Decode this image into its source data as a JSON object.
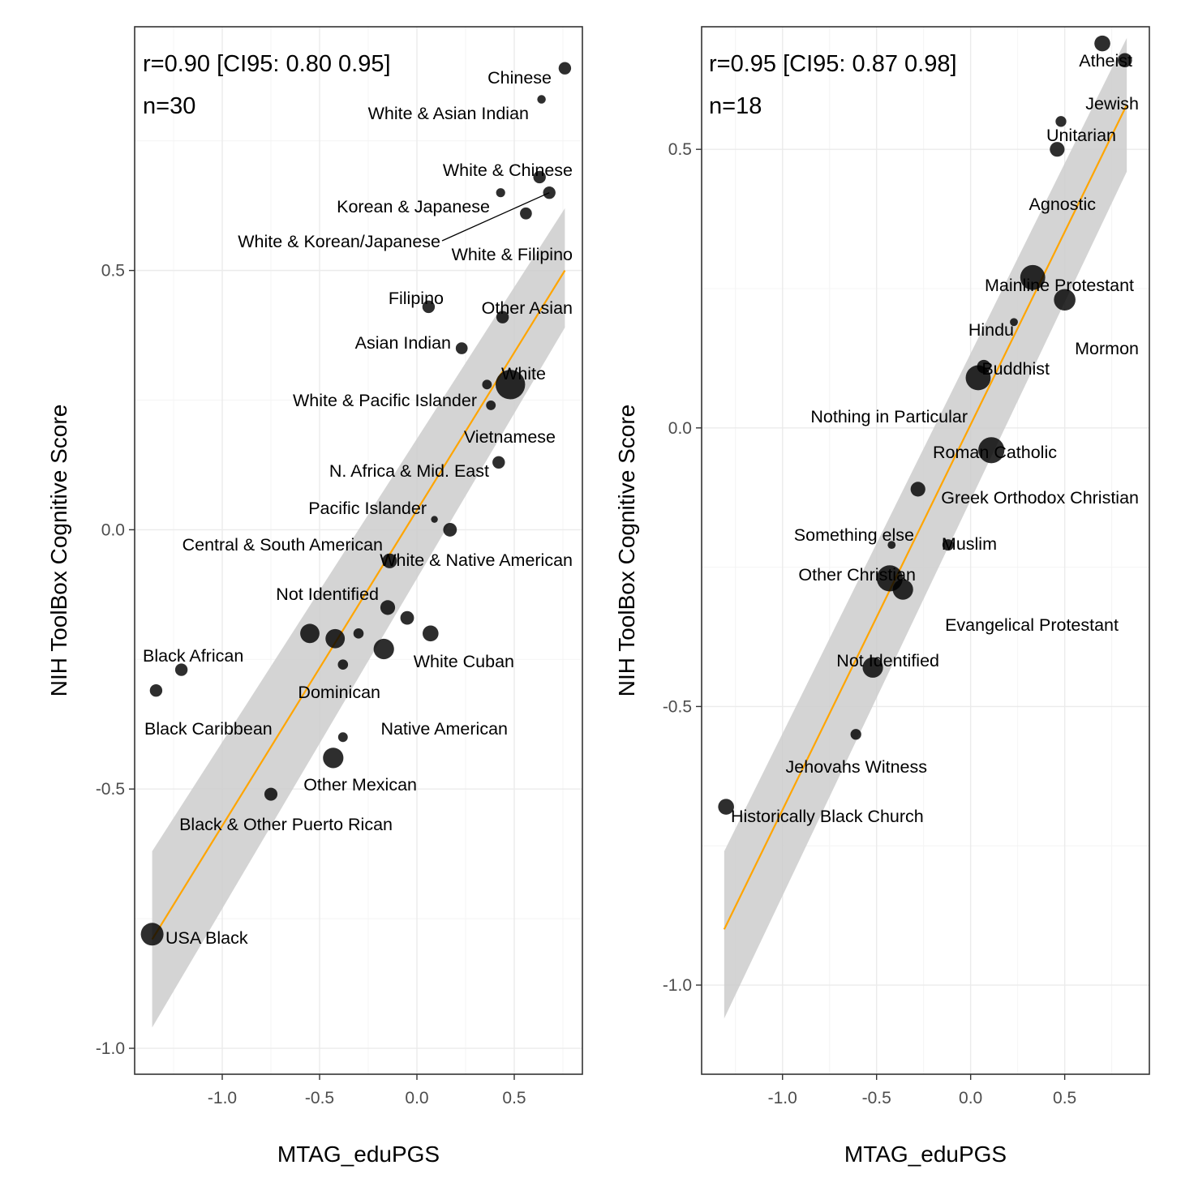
{
  "chart_data": [
    {
      "type": "scatter",
      "xlabel": "MTAG_eduPGS",
      "ylabel": "NIH ToolBox Cognitive Score",
      "stat_lines": [
        "r=0.90 [CI95: 0.80 0.95]",
        "n=30"
      ],
      "xlim": [
        -1.45,
        0.85
      ],
      "ylim": [
        -1.05,
        0.97
      ],
      "x_ticks": [
        -1.0,
        -0.5,
        0.0,
        0.5
      ],
      "x_tick_labels": [
        "-1.0",
        "-0.5",
        "0.0",
        "0.5"
      ],
      "y_ticks": [
        -1.0,
        -0.5,
        0.0,
        0.5
      ],
      "y_tick_labels": [
        "-1.0",
        "-0.5",
        "0.0",
        "0.5"
      ],
      "grid": true,
      "fit": {
        "x_range": [
          -1.36,
          0.76
        ],
        "y_range": [
          -0.79,
          0.5
        ],
        "color": "#ffa500"
      },
      "band": {
        "lower_ends": [
          -0.96,
          0.39
        ],
        "upper_ends": [
          -0.62,
          0.62
        ]
      },
      "points": [
        {
          "label": "Chinese",
          "x": 0.76,
          "y": 0.89,
          "size": 1.1
        },
        {
          "label": "White & Asian Indian",
          "x": 0.64,
          "y": 0.83,
          "size": 0.75
        },
        {
          "label": "White & Chinese",
          "x": 0.63,
          "y": 0.68,
          "size": 1.1
        },
        {
          "label": "Korean & Japanese",
          "x": 0.43,
          "y": 0.65,
          "size": 0.8
        },
        {
          "label": "White & Korean/Japanese",
          "x": 0.68,
          "y": 0.65,
          "size": 1.1
        },
        {
          "label": "White & Filipino",
          "x": 0.56,
          "y": 0.61,
          "size": 1.05
        },
        {
          "label": "Filipino",
          "x": 0.06,
          "y": 0.43,
          "size": 1.1
        },
        {
          "label": "Other Asian",
          "x": 0.44,
          "y": 0.41,
          "size": 1.1
        },
        {
          "label": "Asian Indian",
          "x": 0.23,
          "y": 0.35,
          "size": 1.05
        },
        {
          "label": "White",
          "x": 0.48,
          "y": 0.28,
          "size": 2.6
        },
        {
          "label": "White & Pacific Islander",
          "x": 0.36,
          "y": 0.28,
          "size": 0.85
        },
        {
          "label": "Vietnamese",
          "x": 0.38,
          "y": 0.24,
          "size": 0.85
        },
        {
          "label": "N. Africa & Mid. East",
          "x": 0.42,
          "y": 0.13,
          "size": 1.1
        },
        {
          "label": "Pacific Islander",
          "x": 0.09,
          "y": 0.02,
          "size": 0.6
        },
        {
          "label": "Central & South American",
          "x": 0.17,
          "y": 0.0,
          "size": 1.2
        },
        {
          "label": "White & Native American",
          "x": -0.14,
          "y": -0.06,
          "size": 1.3
        },
        {
          "label": "Not Identified",
          "x": -0.15,
          "y": -0.15,
          "size": 1.3
        },
        {
          "label": "",
          "x": -0.05,
          "y": -0.17,
          "size": 1.2
        },
        {
          "label": "",
          "x": 0.07,
          "y": -0.2,
          "size": 1.4
        },
        {
          "label": "",
          "x": -0.55,
          "y": -0.2,
          "size": 1.7
        },
        {
          "label": "",
          "x": -0.42,
          "y": -0.21,
          "size": 1.7
        },
        {
          "label": "",
          "x": -0.3,
          "y": -0.2,
          "size": 0.9
        },
        {
          "label": "White Cuban",
          "x": -0.17,
          "y": -0.23,
          "size": 1.8
        },
        {
          "label": "Dominican",
          "x": -0.38,
          "y": -0.26,
          "size": 0.9
        },
        {
          "label": "Black African",
          "x": -1.21,
          "y": -0.27,
          "size": 1.1
        },
        {
          "label": "Black Caribbean",
          "x": -1.34,
          "y": -0.31,
          "size": 1.1
        },
        {
          "label": "Native American",
          "x": -0.38,
          "y": -0.4,
          "size": 0.85
        },
        {
          "label": "Other Mexican",
          "x": -0.43,
          "y": -0.44,
          "size": 1.8
        },
        {
          "label": "Black & Other Puerto Rican",
          "x": -0.75,
          "y": -0.51,
          "size": 1.15
        },
        {
          "label": "USA Black",
          "x": -1.36,
          "y": -0.78,
          "size": 2.0
        }
      ]
    },
    {
      "type": "scatter",
      "xlabel": "MTAG_eduPGS",
      "ylabel": "NIH ToolBox Cognitive Score",
      "stat_lines": [
        "r=0.95 [CI95: 0.87 0.98]",
        "n=18"
      ],
      "xlim": [
        -1.43,
        0.95
      ],
      "ylim": [
        -1.16,
        0.72
      ],
      "x_ticks": [
        -1.0,
        -0.5,
        0.0,
        0.5
      ],
      "x_tick_labels": [
        "-1.0",
        "-0.5",
        "0.0",
        "0.5"
      ],
      "y_ticks": [
        -1.0,
        -0.5,
        0.0,
        0.5
      ],
      "y_tick_labels": [
        "-1.0",
        "-0.5",
        "0.0",
        "0.5"
      ],
      "grid": true,
      "fit": {
        "x_range": [
          -1.31,
          0.83
        ],
        "y_range": [
          -0.9,
          0.58
        ],
        "color": "#ffa500"
      },
      "band": {
        "lower_ends": [
          -1.06,
          0.46
        ],
        "upper_ends": [
          -0.76,
          0.7
        ]
      },
      "points": [
        {
          "label": "Atheist",
          "x": 0.7,
          "y": 0.69,
          "size": 1.4
        },
        {
          "label": "Jewish",
          "x": 0.82,
          "y": 0.66,
          "size": 1.25
        },
        {
          "label": "Unitarian",
          "x": 0.48,
          "y": 0.55,
          "size": 0.95
        },
        {
          "label": "Agnostic",
          "x": 0.46,
          "y": 0.5,
          "size": 1.3
        },
        {
          "label": "Mainline Protestant",
          "x": 0.33,
          "y": 0.27,
          "size": 2.2
        },
        {
          "label": "Mormon",
          "x": 0.5,
          "y": 0.23,
          "size": 1.9
        },
        {
          "label": "Hindu",
          "x": 0.23,
          "y": 0.19,
          "size": 0.7
        },
        {
          "label": "Buddhist",
          "x": 0.07,
          "y": 0.11,
          "size": 1.2
        },
        {
          "label": "Nothing in Particular",
          "x": 0.04,
          "y": 0.09,
          "size": 2.2
        },
        {
          "label": "Roman Catholic",
          "x": 0.11,
          "y": -0.04,
          "size": 2.3
        },
        {
          "label": "Greek Orthodox Christian",
          "x": -0.28,
          "y": -0.11,
          "size": 1.3
        },
        {
          "label": "Something else",
          "x": -0.42,
          "y": -0.21,
          "size": 0.7
        },
        {
          "label": "Muslim",
          "x": -0.12,
          "y": -0.21,
          "size": 1.0
        },
        {
          "label": "Other Christian",
          "x": -0.43,
          "y": -0.27,
          "size": 2.3
        },
        {
          "label": "Evangelical Protestant",
          "x": -0.36,
          "y": -0.29,
          "size": 1.8
        },
        {
          "label": "Not Identified",
          "x": -0.52,
          "y": -0.43,
          "size": 1.8
        },
        {
          "label": "Jehovahs Witness",
          "x": -0.61,
          "y": -0.55,
          "size": 0.95
        },
        {
          "label": "Historically Black Church",
          "x": -1.3,
          "y": -0.68,
          "size": 1.4
        }
      ]
    }
  ]
}
